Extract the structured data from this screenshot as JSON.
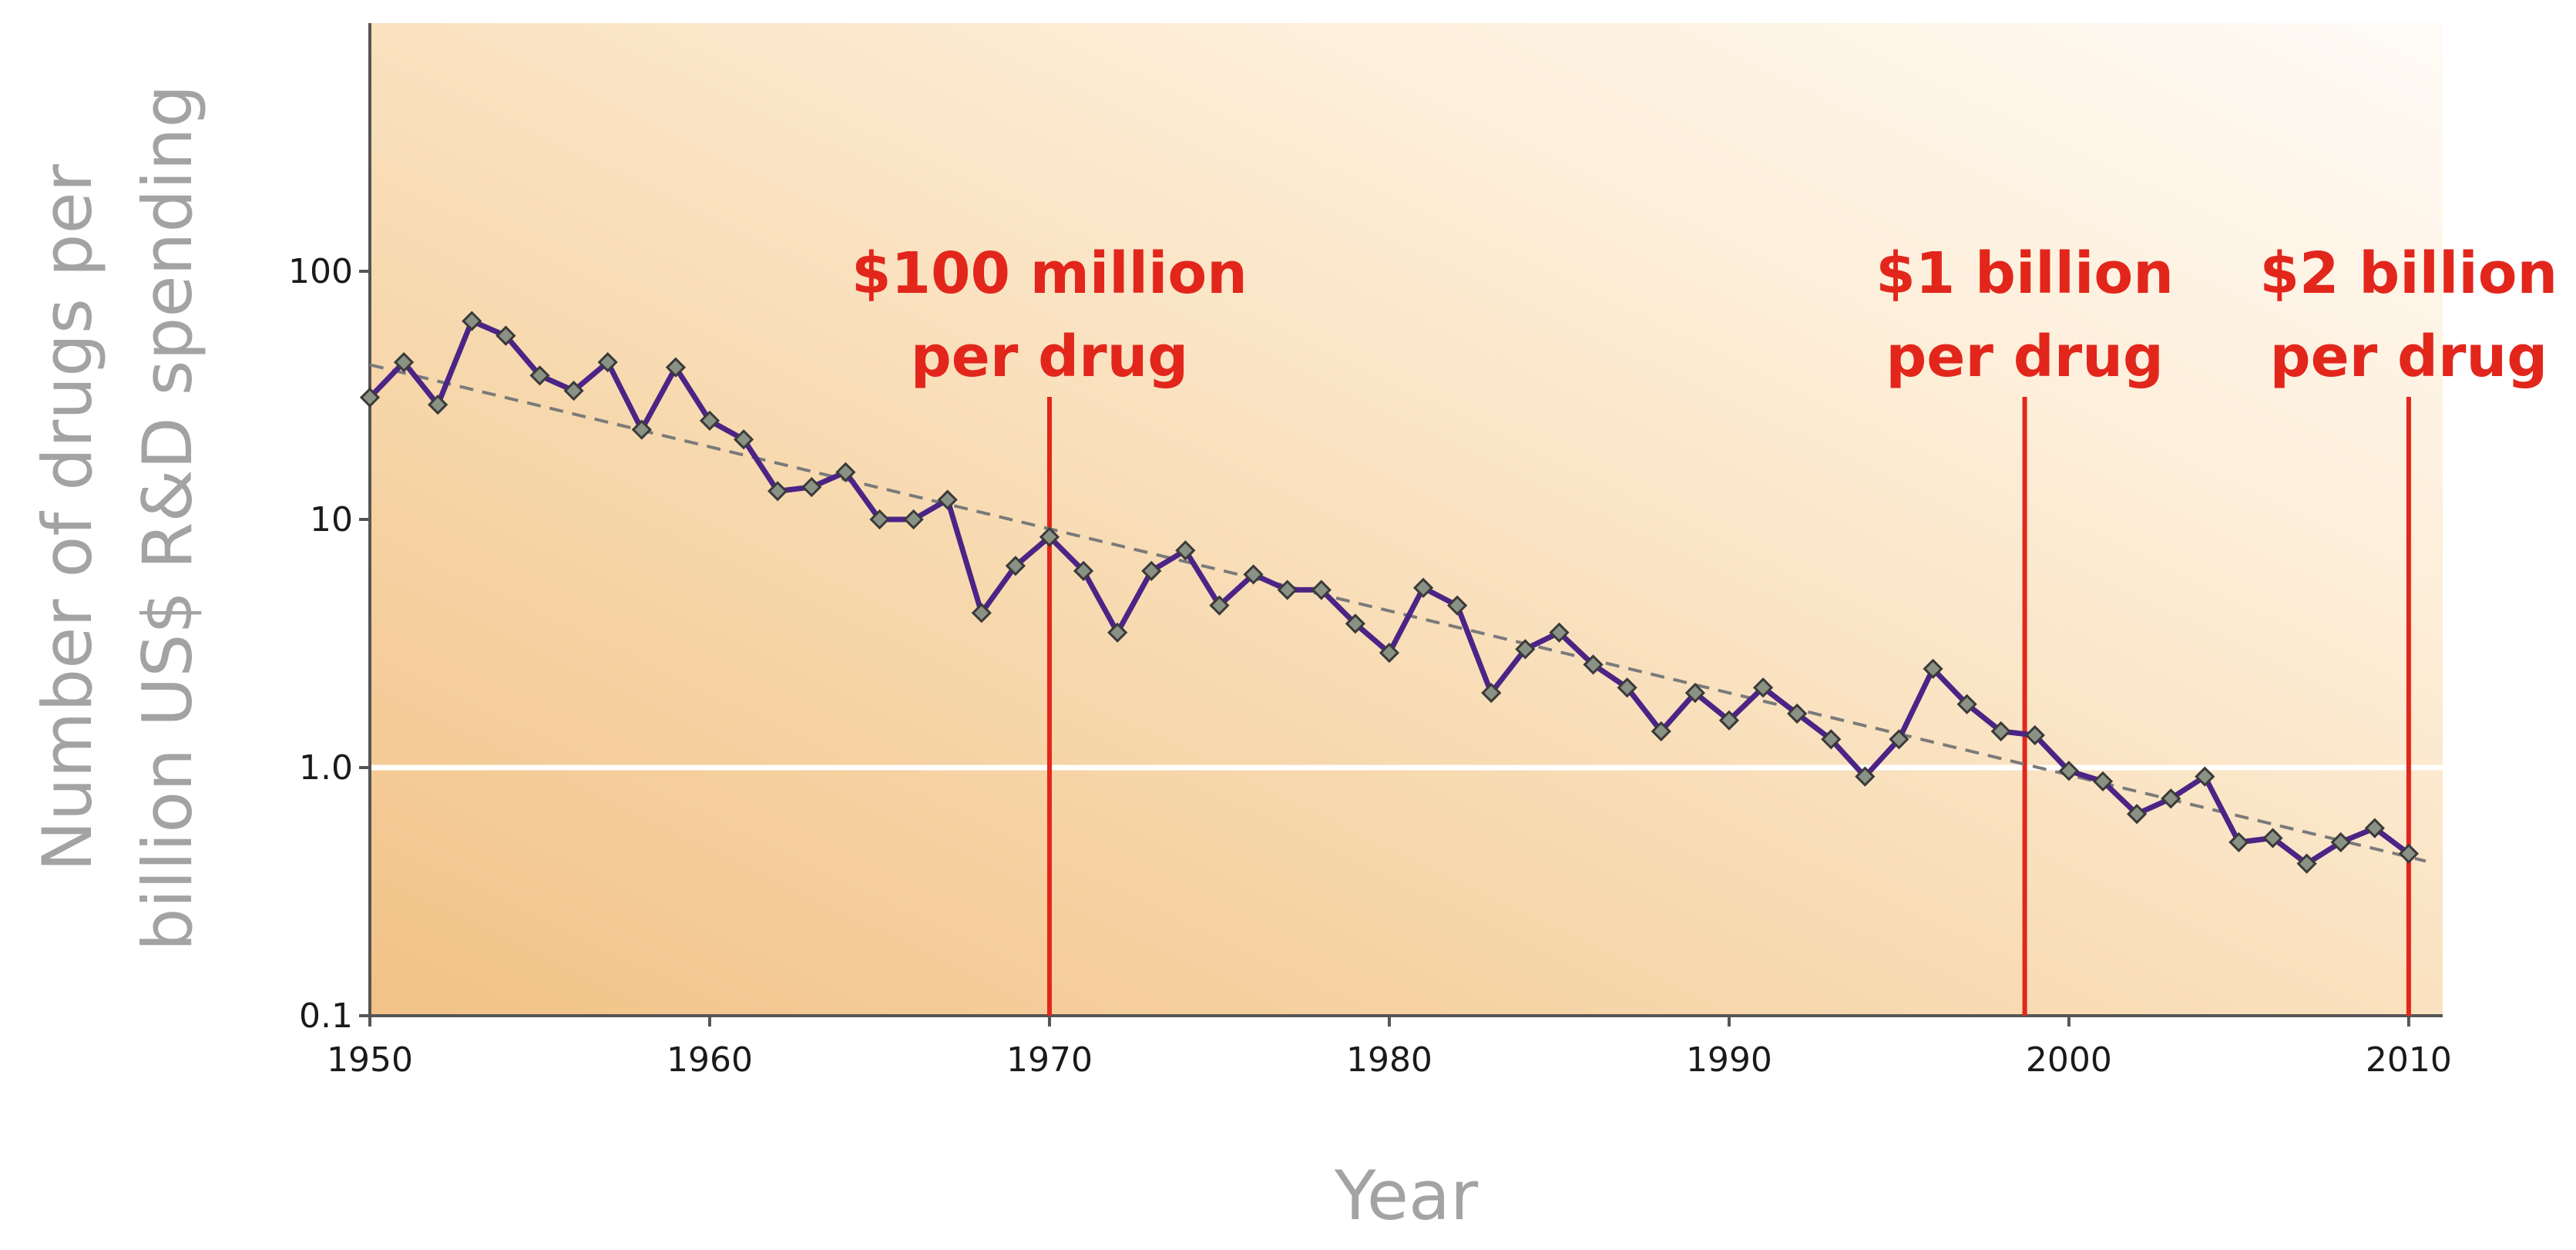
{
  "chart_data": {
    "type": "line",
    "title": "",
    "xlabel": "Year",
    "ylabel_lines": [
      "Number of drugs per",
      "billion US$ R&D spending"
    ],
    "y_scale": "log",
    "xlim": [
      1950,
      2011
    ],
    "ylim": [
      0.1,
      1000
    ],
    "x_ticks": [
      1950,
      1960,
      1970,
      1980,
      1990,
      2000,
      2010
    ],
    "x_tick_labels": [
      "1950",
      "1960",
      "1970",
      "1980",
      "1990",
      "2000",
      "2010"
    ],
    "y_ticks": [
      0.1,
      1.0,
      10,
      100
    ],
    "y_tick_labels": [
      "0.1",
      "1.0",
      "10",
      "100"
    ],
    "reference_line_y": 1.0,
    "series": [
      {
        "name": "Drugs per billion US$ R&D",
        "x": [
          1950,
          1951,
          1952,
          1953,
          1954,
          1955,
          1956,
          1957,
          1958,
          1959,
          1960,
          1961,
          1962,
          1963,
          1964,
          1965,
          1966,
          1967,
          1968,
          1969,
          1970,
          1971,
          1972,
          1973,
          1974,
          1975,
          1976,
          1977,
          1978,
          1979,
          1980,
          1981,
          1982,
          1983,
          1984,
          1985,
          1986,
          1987,
          1988,
          1989,
          1990,
          1991,
          1992,
          1993,
          1994,
          1995,
          1996,
          1997,
          1998,
          1999,
          2000,
          2001,
          2002,
          2003,
          2004,
          2005,
          2006,
          2007,
          2008,
          2009,
          2010
        ],
        "values": [
          31,
          43,
          29,
          63,
          55,
          38,
          33,
          43,
          23,
          41,
          25,
          21,
          13,
          13.5,
          15.5,
          10,
          10,
          12,
          4.2,
          6.5,
          8.5,
          6.2,
          3.5,
          6.2,
          7.5,
          4.5,
          6,
          5.2,
          5.2,
          3.8,
          2.9,
          5.3,
          4.5,
          2,
          3,
          3.5,
          2.6,
          2.1,
          1.4,
          2,
          1.55,
          2.1,
          1.65,
          1.3,
          0.92,
          1.3,
          2.5,
          1.8,
          1.4,
          1.35,
          0.97,
          0.88,
          0.65,
          0.75,
          0.92,
          0.5,
          0.52,
          0.41,
          0.5,
          0.57,
          0.45
        ]
      }
    ],
    "trend_line": {
      "x": [
        1950,
        2010.5
      ],
      "values": [
        42,
        0.42
      ]
    },
    "annotations": [
      {
        "x": 1970,
        "line1": "$100 million",
        "line2": "per drug"
      },
      {
        "x": 1998.7,
        "line1": "$1 billion",
        "line2": "per drug"
      },
      {
        "x": 2010,
        "line1": "$2 billion",
        "line2": "per drug"
      }
    ],
    "colors": {
      "line": "#4b2486",
      "marker_fill": "#8a9285",
      "marker_stroke": "#3a3a3a",
      "trend": "#7a7a7a",
      "annotation": "#e2261b",
      "reference": "#ffffff",
      "bg_dark": "#f3c78e",
      "bg_light": "#fefaf4",
      "axis_label": "#a3a3a3"
    }
  }
}
